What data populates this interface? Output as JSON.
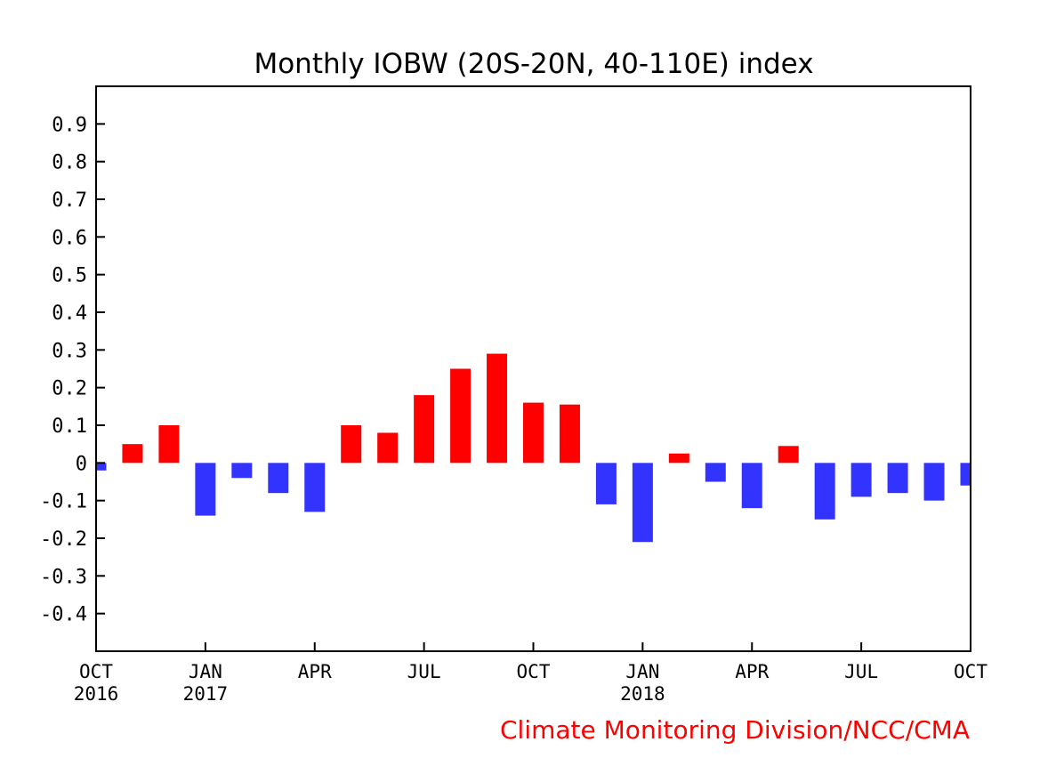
{
  "chart_data": {
    "type": "bar",
    "title": "Monthly IOBW (20S-20N, 40-110E) index",
    "credit": "Climate Monitoring Division/NCC/CMA",
    "ylim": [
      -0.5,
      1.0
    ],
    "yticks": [
      -0.4,
      -0.3,
      -0.2,
      -0.1,
      0,
      0.1,
      0.2,
      0.3,
      0.4,
      0.5,
      0.6,
      0.7,
      0.8,
      0.9
    ],
    "ytick_labels": [
      "-0.4",
      "-0.3",
      "-0.2",
      "-0.1",
      "0",
      "0.1",
      "0.2",
      "0.3",
      "0.4",
      "0.5",
      "0.6",
      "0.7",
      "0.8",
      "0.9"
    ],
    "xticks": [
      {
        "month_index": 0,
        "label": "OCT",
        "year": "2016"
      },
      {
        "month_index": 3,
        "label": "JAN",
        "year": "2017"
      },
      {
        "month_index": 6,
        "label": "APR",
        "year": ""
      },
      {
        "month_index": 9,
        "label": "JUL",
        "year": ""
      },
      {
        "month_index": 12,
        "label": "OCT",
        "year": ""
      },
      {
        "month_index": 15,
        "label": "JAN",
        "year": "2018"
      },
      {
        "month_index": 18,
        "label": "APR",
        "year": ""
      },
      {
        "month_index": 21,
        "label": "JUL",
        "year": ""
      },
      {
        "month_index": 24,
        "label": "OCT",
        "year": ""
      }
    ],
    "months": [
      "2016-10",
      "2016-11",
      "2016-12",
      "2017-01",
      "2017-02",
      "2017-03",
      "2017-04",
      "2017-05",
      "2017-06",
      "2017-07",
      "2017-08",
      "2017-09",
      "2017-10",
      "2017-11",
      "2017-12",
      "2018-01",
      "2018-02",
      "2018-03",
      "2018-04",
      "2018-05",
      "2018-06",
      "2018-07",
      "2018-08",
      "2018-09",
      "2018-10"
    ],
    "values": [
      -0.02,
      0.05,
      0.1,
      -0.14,
      -0.04,
      -0.08,
      -0.13,
      0.1,
      0.08,
      0.18,
      0.25,
      0.29,
      0.16,
      0.155,
      -0.11,
      -0.21,
      0.025,
      -0.05,
      -0.12,
      0.045,
      -0.15,
      -0.09,
      -0.08,
      -0.1,
      -0.06
    ],
    "positive_color": "#ff0000",
    "negative_color": "#3333ff"
  }
}
